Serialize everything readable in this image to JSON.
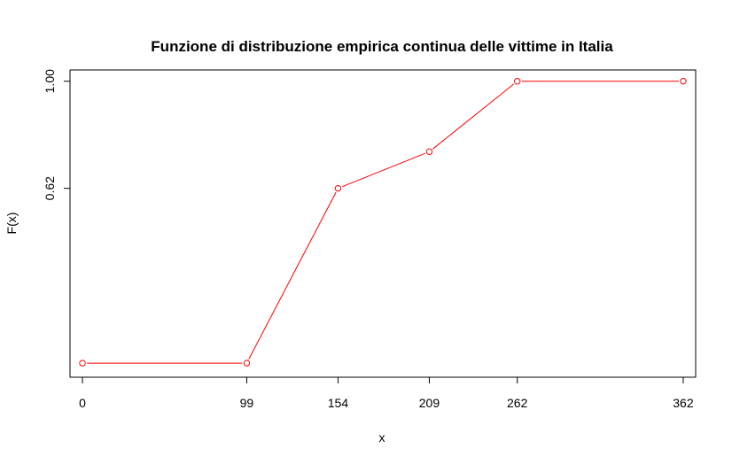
{
  "chart_data": {
    "type": "line",
    "title": "Funzione di distribuzione empirica continua delle vittime in Italia",
    "xlabel": "x",
    "ylabel": "F(x)",
    "x_ticks": [
      0,
      99,
      154,
      209,
      262,
      362
    ],
    "x_tick_labels": [
      "0",
      "99",
      "154",
      "209",
      "262",
      "362"
    ],
    "y_ticks": [
      0.62,
      1.0
    ],
    "y_tick_labels": [
      "0.62",
      "1.00"
    ],
    "xlim": [
      -7.5,
      369.5
    ],
    "ylim": [
      -0.05,
      1.04
    ],
    "grid": false,
    "series": [
      {
        "color": "#ff0000",
        "marker": "open-circle",
        "x": [
          0,
          99,
          154,
          209,
          262,
          362
        ],
        "y": [
          0.0,
          0.0,
          0.62,
          0.75,
          1.0,
          1.0
        ]
      }
    ]
  }
}
